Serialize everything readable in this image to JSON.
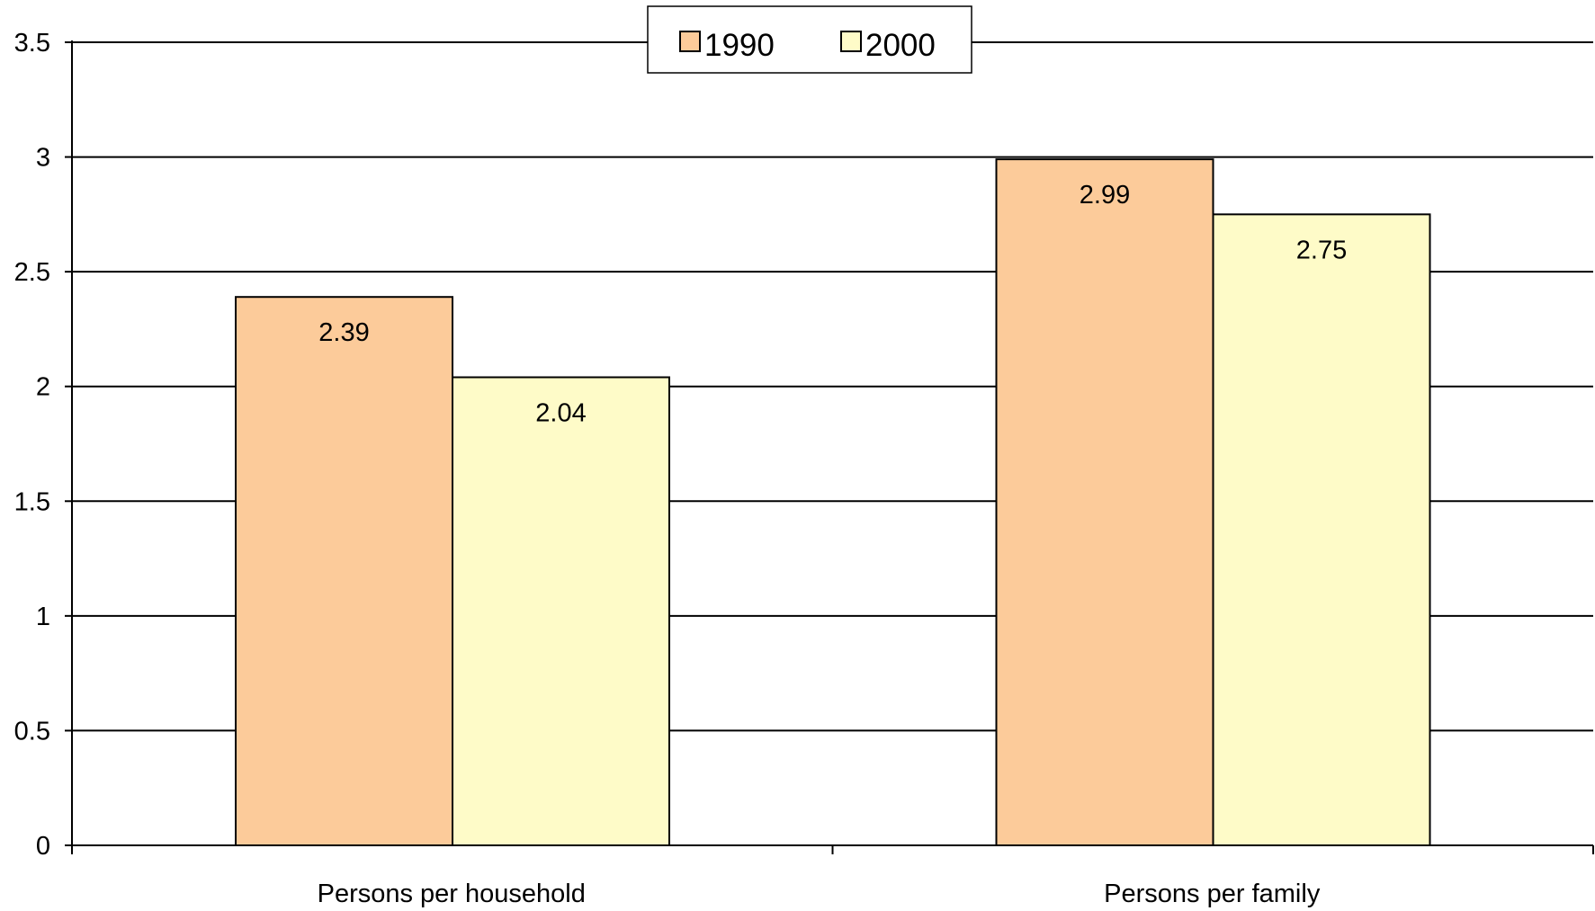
{
  "chart_data": {
    "type": "bar",
    "categories": [
      "Persons per household",
      "Persons per family"
    ],
    "series": [
      {
        "name": "1990",
        "values": [
          2.39,
          2.99
        ],
        "color": "#fccb9a"
      },
      {
        "name": "2000",
        "values": [
          2.04,
          2.75
        ],
        "color": "#fefbc8"
      }
    ],
    "data_labels": [
      [
        "2.39",
        "2.99"
      ],
      [
        "2.04",
        "2.75"
      ]
    ],
    "ylim": [
      0,
      3.5
    ],
    "yticks": [
      "0",
      "0.5",
      "1",
      "1.5",
      "2",
      "2.5",
      "3",
      "3.5"
    ],
    "title": "",
    "xlabel": "",
    "ylabel": "",
    "grid": true,
    "legend_position": "top-center"
  }
}
